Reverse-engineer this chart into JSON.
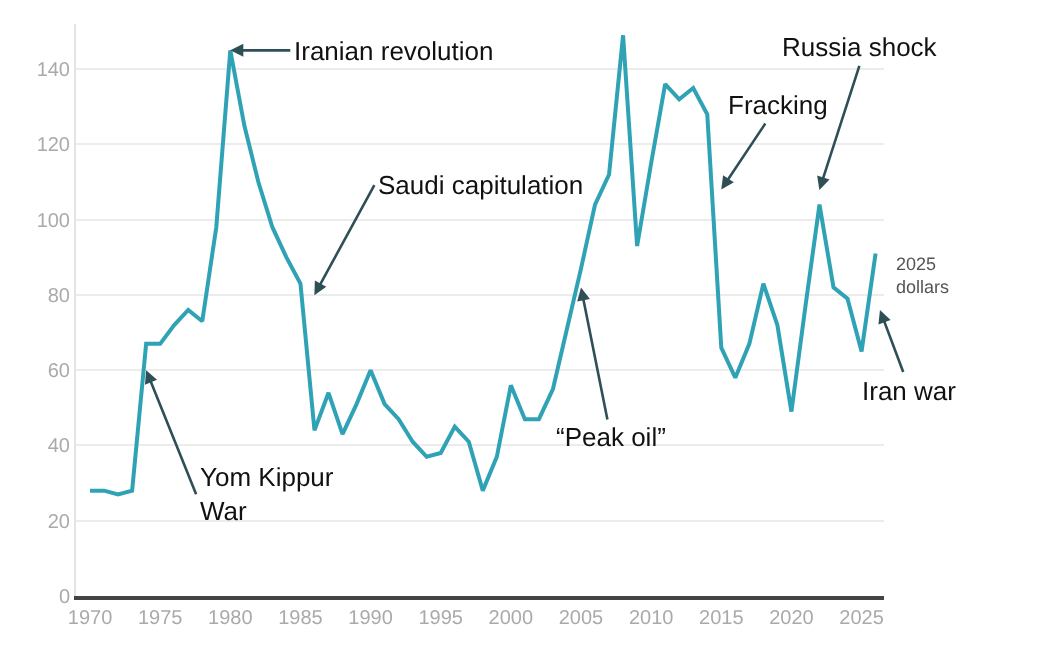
{
  "chart_data": {
    "type": "line",
    "x": [
      1970,
      1971,
      1972,
      1973,
      1974,
      1975,
      1976,
      1977,
      1978,
      1979,
      1980,
      1981,
      1982,
      1983,
      1984,
      1985,
      1986,
      1987,
      1988,
      1989,
      1990,
      1991,
      1992,
      1993,
      1994,
      1995,
      1996,
      1997,
      1998,
      1999,
      2000,
      2001,
      2002,
      2003,
      2004,
      2005,
      2006,
      2007,
      2008,
      2009,
      2010,
      2011,
      2012,
      2013,
      2014,
      2015,
      2016,
      2017,
      2018,
      2019,
      2020,
      2021,
      2022,
      2023,
      2024,
      2025,
      2026
    ],
    "series": [
      {
        "color": "#2fa3b5",
        "values": [
          28,
          28,
          27,
          28,
          67,
          67,
          72,
          76,
          73,
          98,
          145,
          125,
          110,
          98,
          90,
          83,
          44,
          54,
          43,
          51,
          60,
          51,
          47,
          41,
          37,
          38,
          45,
          41,
          28,
          37,
          56,
          47,
          47,
          55,
          71,
          87,
          104,
          112,
          149,
          93,
          115,
          136,
          132,
          135,
          128,
          66,
          58,
          67,
          83,
          72,
          49,
          77,
          104,
          82,
          79,
          65,
          91
        ]
      }
    ],
    "xlim": [
      1969,
      2026.6
    ],
    "ylim": [
      0,
      152
    ],
    "xticks": [
      1970,
      1975,
      1980,
      1985,
      1990,
      1995,
      2000,
      2005,
      2010,
      2015,
      2020,
      2025
    ],
    "yticks": [
      0,
      20,
      40,
      60,
      80,
      100,
      120,
      140
    ],
    "grid": "y",
    "marker": "none",
    "line_style": "solid",
    "annotations": [
      {
        "text": "Iranian revolution",
        "x": 1980,
        "y": 145
      },
      "Saudi capitulation",
      {
        "text": "Yom Kippur\nWar",
        "x": 1974,
        "y": 60
      },
      {
        "text": "“Peak oil”",
        "x": 2005,
        "y": 82
      },
      {
        "text": "Fracking",
        "x": 2015,
        "y": 108
      },
      "Russia shock",
      "Iran war",
      "2025\ndollars"
    ]
  }
}
